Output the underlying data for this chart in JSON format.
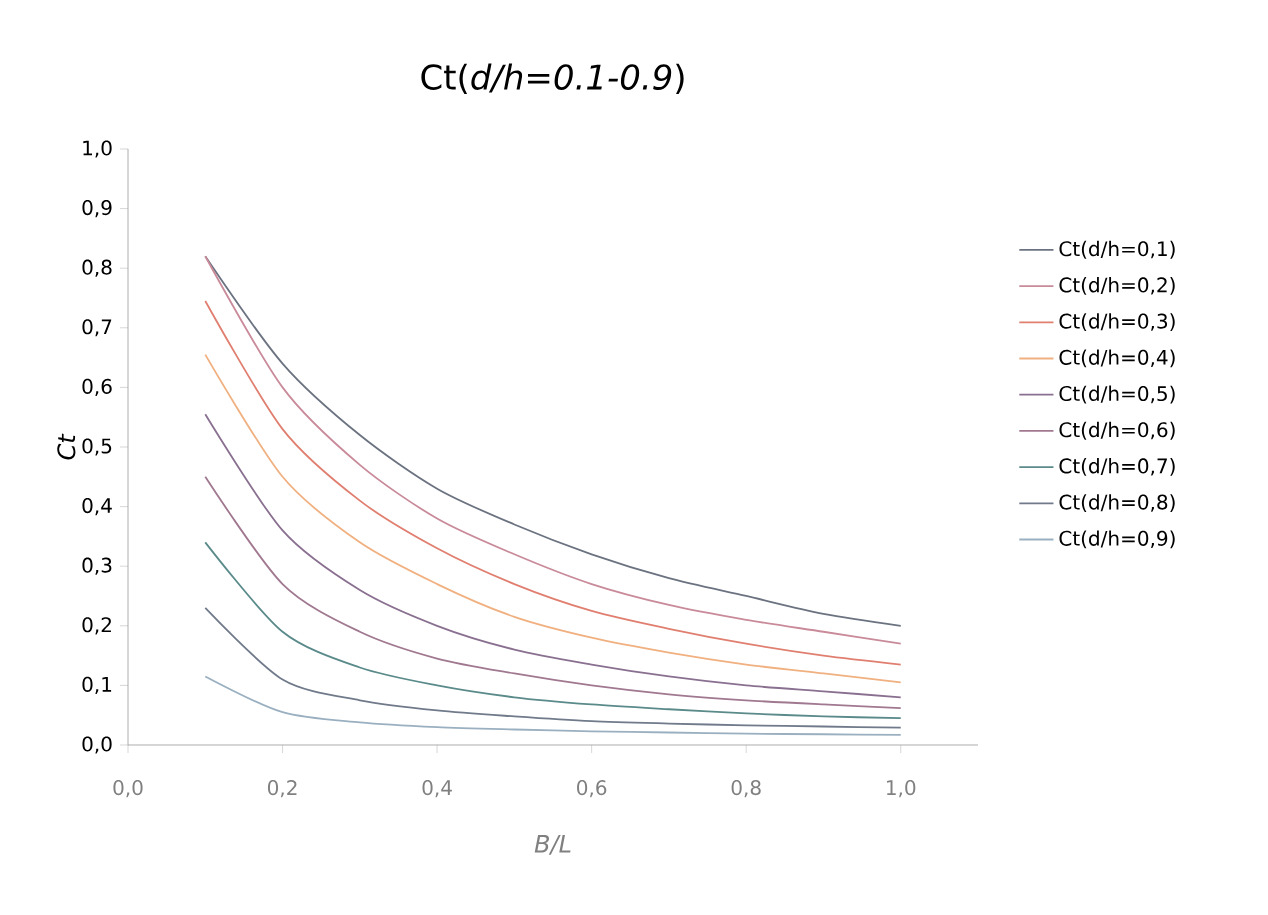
{
  "chart_data": {
    "type": "line",
    "title": "Ct(*d/h=0.1-0.9*)",
    "xlabel": "*B/L*",
    "ylabel": "*Ct*",
    "x": [
      0.1,
      0.2,
      0.3,
      0.4,
      0.5,
      0.6,
      0.7,
      0.8,
      0.9,
      1.0
    ],
    "series": [
      {
        "name": "Ct(d/h=0,1)",
        "color": "#6b7280",
        "values": [
          0.82,
          0.64,
          0.52,
          0.43,
          0.37,
          0.32,
          0.28,
          0.25,
          0.22,
          0.2
        ]
      },
      {
        "name": "Ct(d/h=0,2)",
        "color": "#c98a9a",
        "values": [
          0.82,
          0.6,
          0.47,
          0.38,
          0.32,
          0.27,
          0.235,
          0.21,
          0.19,
          0.17
        ]
      },
      {
        "name": "Ct(d/h=0,3)",
        "color": "#e07f70",
        "values": [
          0.745,
          0.53,
          0.41,
          0.33,
          0.27,
          0.225,
          0.195,
          0.17,
          0.15,
          0.135
        ]
      },
      {
        "name": "Ct(d/h=0,4)",
        "color": "#f0b080",
        "values": [
          0.655,
          0.45,
          0.34,
          0.27,
          0.215,
          0.18,
          0.155,
          0.135,
          0.12,
          0.105
        ]
      },
      {
        "name": "Ct(d/h=0,5)",
        "color": "#8a7090",
        "values": [
          0.555,
          0.36,
          0.26,
          0.2,
          0.16,
          0.135,
          0.115,
          0.1,
          0.09,
          0.08
        ]
      },
      {
        "name": "Ct(d/h=0,6)",
        "color": "#a07890",
        "values": [
          0.45,
          0.27,
          0.19,
          0.145,
          0.12,
          0.1,
          0.085,
          0.075,
          0.068,
          0.062
        ]
      },
      {
        "name": "Ct(d/h=0,7)",
        "color": "#5a8a8a",
        "values": [
          0.34,
          0.19,
          0.13,
          0.1,
          0.08,
          0.068,
          0.06,
          0.053,
          0.048,
          0.045
        ]
      },
      {
        "name": "Ct(d/h=0,8)",
        "color": "#707a8a",
        "values": [
          0.23,
          0.11,
          0.075,
          0.058,
          0.048,
          0.04,
          0.036,
          0.033,
          0.031,
          0.029
        ]
      },
      {
        "name": "Ct(d/h=0,9)",
        "color": "#9ab0c0",
        "values": [
          0.115,
          0.055,
          0.038,
          0.03,
          0.026,
          0.023,
          0.021,
          0.019,
          0.018,
          0.017
        ]
      }
    ],
    "xlim": [
      0,
      1.1
    ],
    "ylim": [
      0,
      1
    ],
    "xticks": [
      {
        "value": 0,
        "label": "0,0"
      },
      {
        "value": 0.2,
        "label": "0,2"
      },
      {
        "value": 0.4,
        "label": "0,4"
      },
      {
        "value": 0.6,
        "label": "0,6"
      },
      {
        "value": 0.8,
        "label": "0,8"
      },
      {
        "value": 1.0,
        "label": "1,0"
      }
    ],
    "yticks": [
      {
        "value": 0,
        "label": "0,0"
      },
      {
        "value": 0.1,
        "label": "0,1"
      },
      {
        "value": 0.2,
        "label": "0,2"
      },
      {
        "value": 0.3,
        "label": "0,3"
      },
      {
        "value": 0.4,
        "label": "0,4"
      },
      {
        "value": 0.5,
        "label": "0,5"
      },
      {
        "value": 0.6,
        "label": "0,6"
      },
      {
        "value": 0.7,
        "label": "0,7"
      },
      {
        "value": 0.8,
        "label": "0,8"
      },
      {
        "value": 0.9,
        "label": "0,9"
      },
      {
        "value": 1.0,
        "label": "1,0"
      }
    ],
    "grid": false,
    "legend": "right",
    "marker": "none",
    "line_style": "solid"
  }
}
